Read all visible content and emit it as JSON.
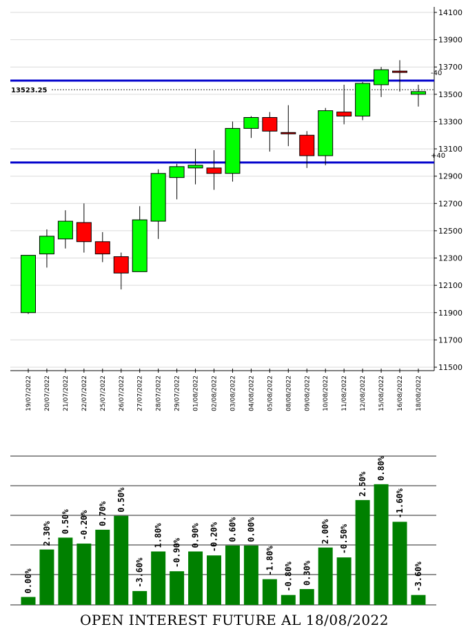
{
  "chart_data": [
    {
      "type": "candlestick",
      "y_axis_ticks": [
        "14100",
        "13900",
        "13700",
        "13500",
        "13300",
        "13100",
        "12900",
        "12700",
        "12500",
        "12300",
        "12100",
        "11900",
        "11700",
        "11500"
      ],
      "ylim": [
        11500,
        14100
      ],
      "grid": true,
      "current_price_label": "13523.25",
      "current_price": 13523.25,
      "levels": [
        {
          "value": 13600,
          "label": "-40"
        },
        {
          "value": 13000,
          "label": "+40"
        }
      ],
      "colors": {
        "up": "#00ff00",
        "down": "#ff0000",
        "level": "#0000cc",
        "grid": "#d9d9d9"
      },
      "candles": [
        {
          "date": "19/07/2022",
          "open": 11900,
          "high": 12320,
          "low": 11890,
          "close": 12320
        },
        {
          "date": "20/07/2022",
          "open": 12330,
          "high": 12510,
          "low": 12230,
          "close": 12460
        },
        {
          "date": "21/07/2022",
          "open": 12440,
          "high": 12650,
          "low": 12370,
          "close": 12570
        },
        {
          "date": "22/07/2022",
          "open": 12560,
          "high": 12700,
          "low": 12340,
          "close": 12420
        },
        {
          "date": "25/07/2022",
          "open": 12420,
          "high": 12490,
          "low": 12270,
          "close": 12330
        },
        {
          "date": "26/07/2022",
          "open": 12310,
          "high": 12340,
          "low": 12070,
          "close": 12190
        },
        {
          "date": "27/07/2022",
          "open": 12200,
          "high": 12680,
          "low": 12200,
          "close": 12580
        },
        {
          "date": "28/07/2022",
          "open": 12570,
          "high": 12950,
          "low": 12440,
          "close": 12920
        },
        {
          "date": "29/07/2022",
          "open": 12890,
          "high": 12990,
          "low": 12730,
          "close": 12970
        },
        {
          "date": "01/08/2022",
          "open": 12960,
          "high": 13100,
          "low": 12840,
          "close": 12980
        },
        {
          "date": "02/08/2022",
          "open": 12960,
          "high": 13090,
          "low": 12800,
          "close": 12920
        },
        {
          "date": "03/08/2022",
          "open": 12920,
          "high": 13300,
          "low": 12860,
          "close": 13250
        },
        {
          "date": "04/08/2022",
          "open": 13250,
          "high": 13340,
          "low": 13180,
          "close": 13330
        },
        {
          "date": "05/08/2022",
          "open": 13330,
          "high": 13370,
          "low": 13080,
          "close": 13230
        },
        {
          "date": "08/08/2022",
          "open": 13220,
          "high": 13420,
          "low": 13120,
          "close": 13210
        },
        {
          "date": "09/08/2022",
          "open": 13200,
          "high": 13230,
          "low": 12960,
          "close": 13050
        },
        {
          "date": "10/08/2022",
          "open": 13050,
          "high": 13400,
          "low": 12980,
          "close": 13380
        },
        {
          "date": "11/08/2022",
          "open": 13370,
          "high": 13570,
          "low": 13280,
          "close": 13340
        },
        {
          "date": "12/08/2022",
          "open": 13340,
          "high": 13590,
          "low": 13310,
          "close": 13580
        },
        {
          "date": "15/08/2022",
          "open": 13570,
          "high": 13700,
          "low": 13480,
          "close": 13680
        },
        {
          "date": "16/08/2022",
          "open": 13670,
          "high": 13750,
          "low": 13520,
          "close": 13660
        },
        {
          "date": "18/08/2022",
          "open": 13500,
          "high": 13570,
          "low": 13410,
          "close": 13520
        }
      ]
    },
    {
      "type": "bar",
      "title": "OPEN INTEREST FUTURE AL 18/08/2022",
      "categories": [
        "19/07/2022",
        "20/07/2022",
        "21/07/2022",
        "22/07/2022",
        "25/07/2022",
        "26/07/2022",
        "27/07/2022",
        "28/07/2022",
        "29/07/2022",
        "01/08/2022",
        "02/08/2022",
        "03/08/2022",
        "04/08/2022",
        "05/08/2022",
        "08/08/2022",
        "09/08/2022",
        "10/08/2022",
        "11/08/2022",
        "12/08/2022",
        "15/08/2022",
        "16/08/2022",
        "18/08/2022"
      ],
      "values": [
        4,
        28,
        34,
        31,
        38,
        45,
        7,
        27,
        17,
        27,
        25,
        30,
        30,
        13,
        5,
        8,
        29,
        24,
        53,
        61,
        42,
        5
      ],
      "value_labels": [
        "0.00%",
        "2.30%",
        "0.50%",
        "-0.20%",
        "0.70%",
        "0.50%",
        "-3.60%",
        "1.80%",
        "-0.90%",
        "0.90%",
        "-0.20%",
        "0.60%",
        "0.00%",
        "-1.80%",
        "-0.80%",
        "0.30%",
        "2.00%",
        "-0.50%",
        "2.50%",
        "0.80%",
        "-1.60%",
        "-3.60%"
      ],
      "ylim": [
        0,
        70
      ],
      "grid": true,
      "colors": {
        "bar": "#008000",
        "grid": "#222222"
      }
    }
  ]
}
